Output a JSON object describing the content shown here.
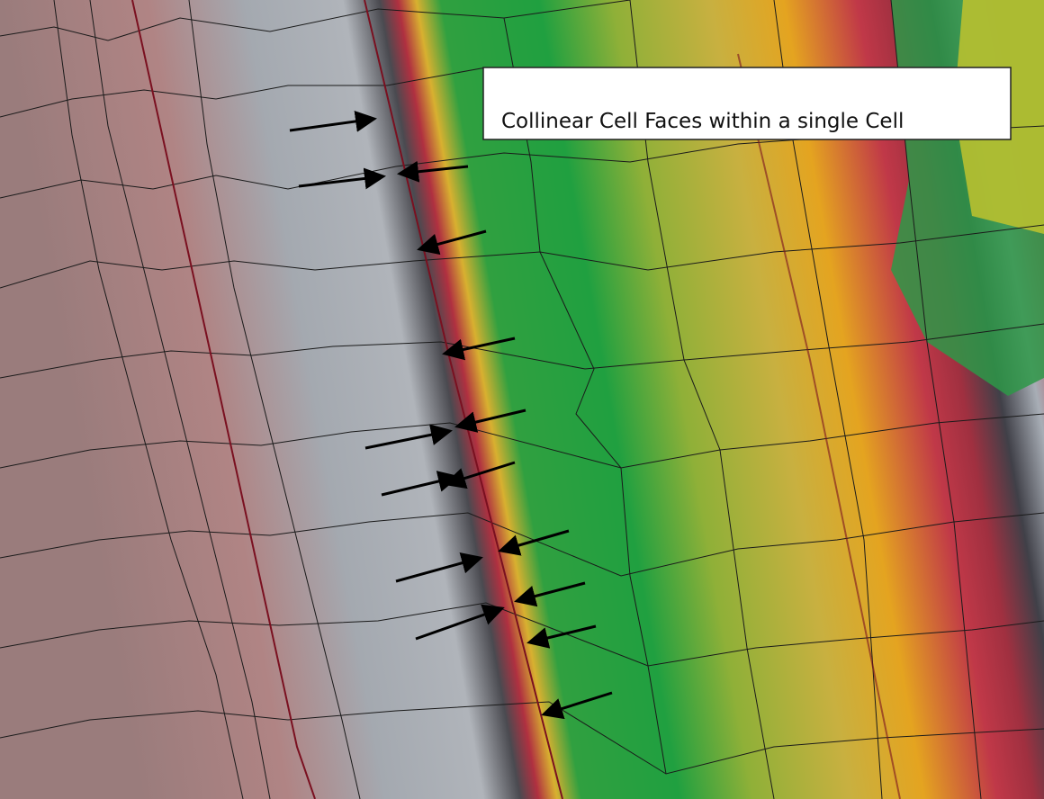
{
  "annotation": {
    "text": "Collinear Cell Faces within a single Cell"
  }
}
